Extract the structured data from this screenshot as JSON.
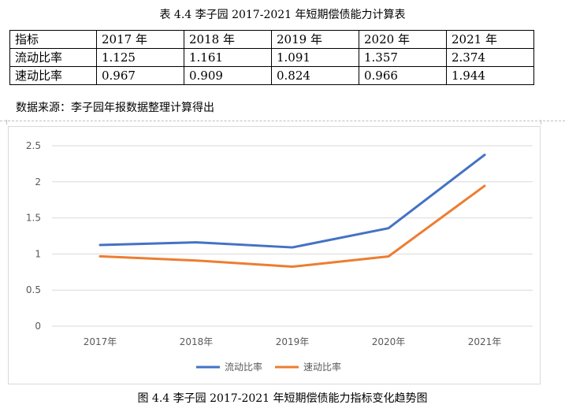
{
  "table": {
    "title": "表 4.4 李子园 2017-2021 年短期偿债能力计算表",
    "header": [
      "指标",
      "2017 年",
      "2018 年",
      "2019 年",
      "2020 年",
      "2021 年"
    ],
    "rows": [
      {
        "label": "流动比率",
        "values": [
          "1.125",
          "1.161",
          "1.091",
          "1.357",
          "2.374"
        ]
      },
      {
        "label": "速动比率",
        "values": [
          "0.967",
          "0.909",
          "0.824",
          "0.966",
          "1.944"
        ]
      }
    ],
    "source": "数据来源：李子园年报数据整理计算得出"
  },
  "chart_data": {
    "type": "line",
    "title": "",
    "xlabel": "",
    "ylabel": "",
    "categories": [
      "2017年",
      "2018年",
      "2019年",
      "2020年",
      "2021年"
    ],
    "y_ticks": [
      "0",
      "0.5",
      "1",
      "1.5",
      "2",
      "2.5"
    ],
    "ylim": [
      0,
      2.5
    ],
    "grid": true,
    "legend": "bottom",
    "series": [
      {
        "name": "流动比率",
        "color": "#4472C4",
        "values": [
          1.125,
          1.161,
          1.091,
          1.357,
          2.374
        ]
      },
      {
        "name": "速动比率",
        "color": "#ED7D31",
        "values": [
          0.967,
          0.909,
          0.824,
          0.966,
          1.944
        ]
      }
    ]
  },
  "figure": {
    "caption": "图 4.4 李子园 2017-2021 年短期偿债能力指标变化趋势图"
  }
}
